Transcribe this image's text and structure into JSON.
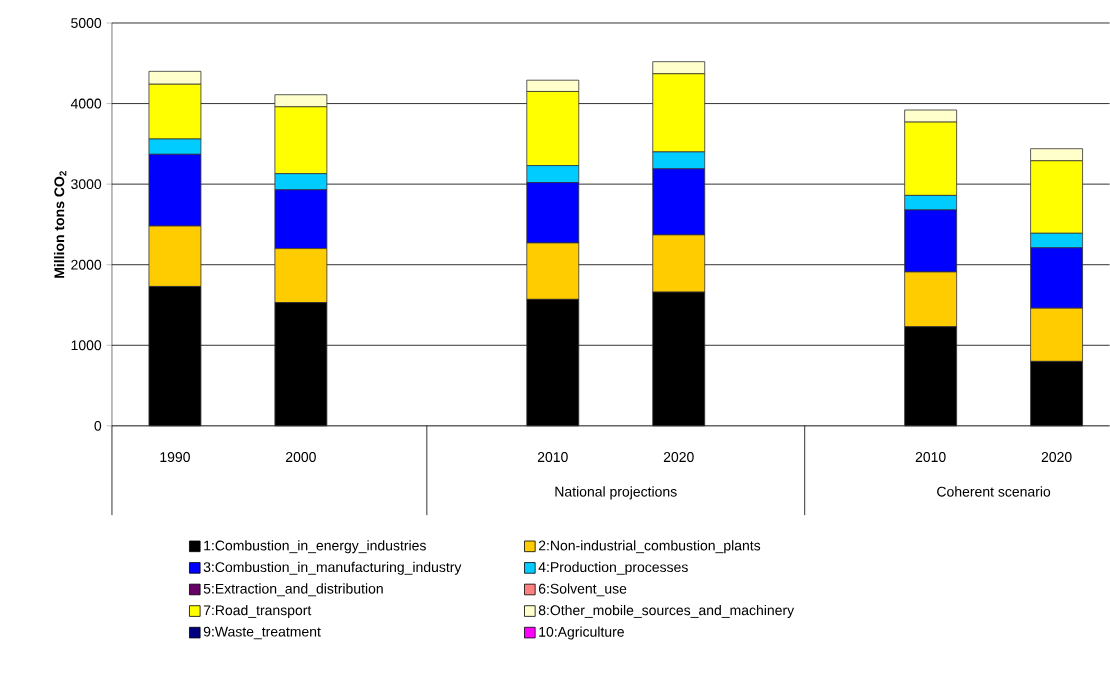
{
  "chart_data": {
    "type": "bar",
    "stacked": true,
    "ylabel": "Million tons CO$_{2}$",
    "categories": [
      "1990",
      "2000",
      null,
      "2010",
      "2020",
      null,
      "2010",
      "2020"
    ],
    "ylim": [
      0,
      5000
    ],
    "yticks": [
      0,
      1000,
      2000,
      3000,
      4000,
      5000
    ],
    "grid": "y",
    "legend": "bottom",
    "annotations": [
      "National projections",
      "Coherent scenario"
    ],
    "series": [
      {
        "name": "1:Combustion_in_energy_industries",
        "color": "#000000",
        "values": [
          1730,
          1530,
          null,
          1570,
          1660,
          null,
          1230,
          800
        ]
      },
      {
        "name": "2:Non-industrial_combustion_plants",
        "color": "#ffcc00",
        "values": [
          750,
          670,
          null,
          700,
          710,
          null,
          680,
          660
        ]
      },
      {
        "name": "3:Combustion_in_manufacturing_industry",
        "color": "#0000ff",
        "values": [
          890,
          730,
          null,
          750,
          820,
          null,
          770,
          750
        ]
      },
      {
        "name": "4:Production_processes",
        "color": "#00ccff",
        "values": [
          190,
          200,
          null,
          210,
          210,
          null,
          180,
          180
        ]
      },
      {
        "name": "5:Extraction_and_distribution",
        "color": "#660066",
        "values": [
          0,
          0,
          null,
          0,
          0,
          null,
          0,
          0
        ]
      },
      {
        "name": "6:Solvent_use",
        "color": "#ff8080",
        "values": [
          0,
          0,
          null,
          0,
          0,
          null,
          0,
          0
        ]
      },
      {
        "name": "7:Road_transport",
        "color": "#ffff00",
        "values": [
          680,
          830,
          null,
          920,
          970,
          null,
          910,
          900
        ]
      },
      {
        "name": "8:Other_mobile_sources_and_machinery",
        "color": "#ffffcc",
        "values": [
          160,
          150,
          null,
          140,
          150,
          null,
          150,
          150
        ]
      },
      {
        "name": "9:Waste_treatment",
        "color": "#000080",
        "values": [
          0,
          0,
          null,
          0,
          0,
          null,
          0,
          0
        ]
      },
      {
        "name": "10:Agriculture",
        "color": "#ff00ff",
        "values": [
          0,
          0,
          null,
          0,
          0,
          null,
          0,
          0
        ]
      }
    ]
  }
}
